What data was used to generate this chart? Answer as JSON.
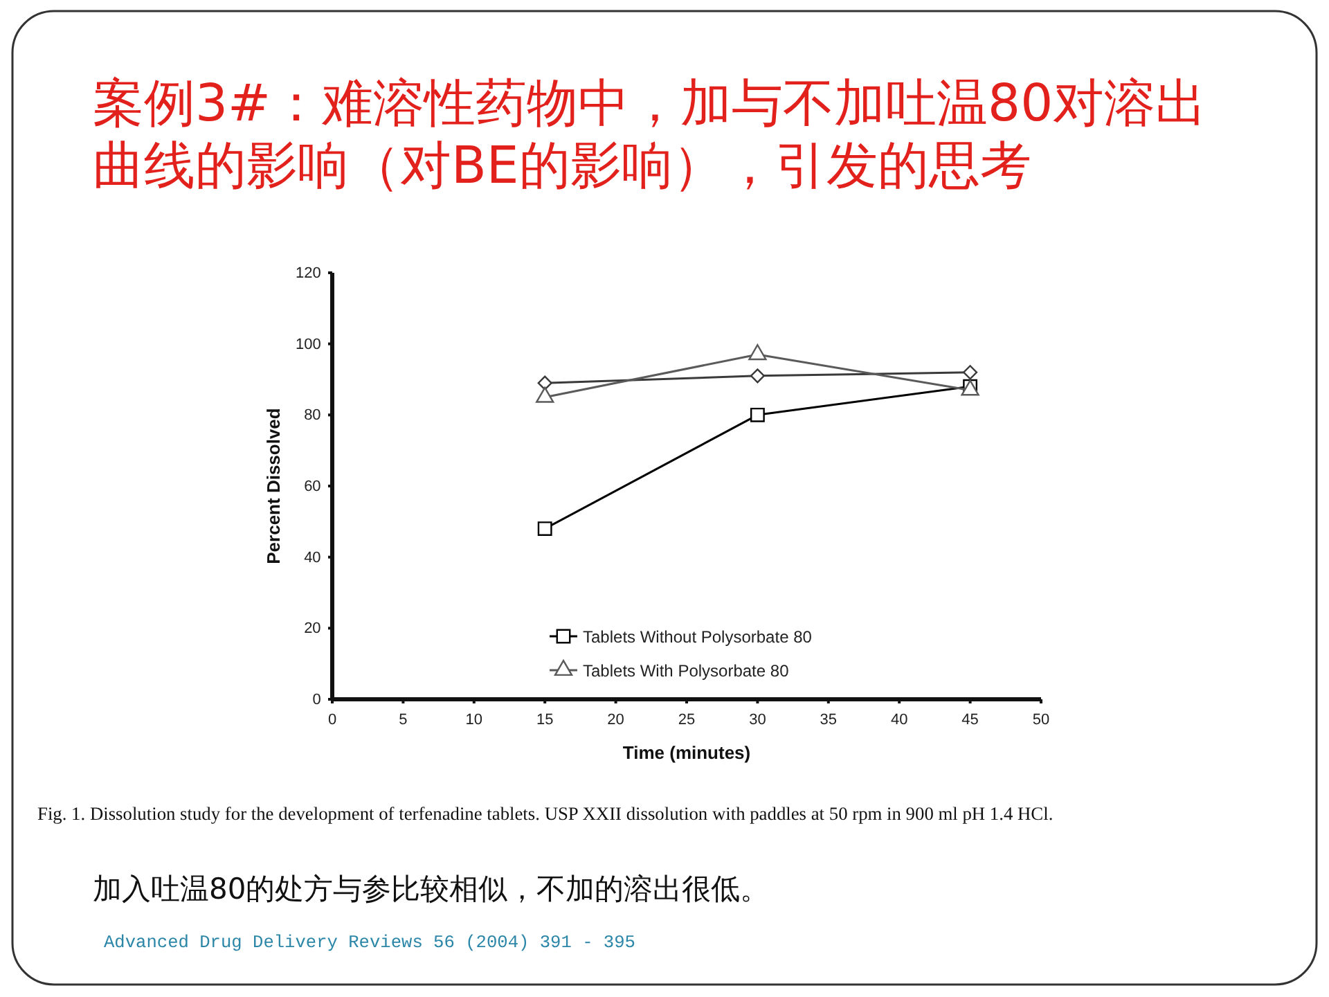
{
  "chart_data": {
    "type": "line",
    "title": "案例3#：难溶性药物中，加与不加吐温80对溶出曲线的影响（对BE的影响），引发的思考",
    "xlabel": "Time (minutes)",
    "ylabel": "Percent Dissolved",
    "x": [
      15,
      30,
      45
    ],
    "series": [
      {
        "color": "#3a3a3a",
        "values": [
          89,
          91,
          92
        ],
        "marker": "diamond"
      },
      {
        "name": "Tablets Without Polysorbate 80",
        "color": "#000000",
        "values": [
          48,
          80,
          88
        ],
        "marker": "square"
      },
      {
        "name": "Tablets With Polysorbate 80",
        "color": "#5a5a5a",
        "values": [
          85,
          97,
          87
        ],
        "marker": "triangle"
      }
    ],
    "xlim": [
      0,
      50
    ],
    "xticks": [
      0,
      5,
      10,
      15,
      20,
      25,
      30,
      35,
      40,
      45,
      50
    ],
    "ylim": [
      0,
      120
    ],
    "yticks": [
      0,
      20,
      40,
      60,
      80,
      100,
      120
    ],
    "legend": "bottom left",
    "annotations": [
      "Fig. 1. Dissolution study for the development of terfenadine tablets. USP XXII dissolution with paddles at 50 rpm in 900 ml pH 1.4 HCl.",
      "加入吐温80的处方与参比较相似，不加的溶出很低。",
      "Advanced Drug Delivery Reviews 56 (2004) 391 - 395"
    ]
  }
}
